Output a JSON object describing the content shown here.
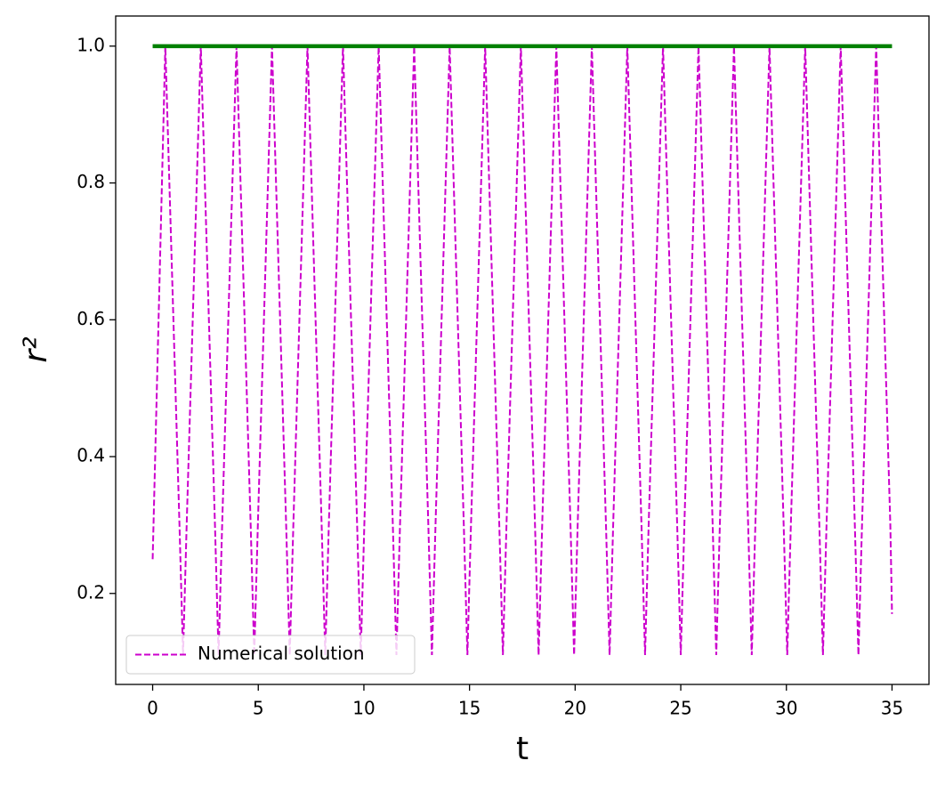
{
  "chart_data": {
    "type": "line",
    "xlabel": "t",
    "ylabel": "r²",
    "xlim": [
      -1.75,
      36.75
    ],
    "ylim": [
      0.067,
      1.044
    ],
    "xticks": [
      0,
      5,
      10,
      15,
      20,
      25,
      30,
      35
    ],
    "yticks": [
      {
        "value": 0.2,
        "label": "0.2"
      },
      {
        "value": 0.4,
        "label": "0.4"
      },
      {
        "value": 0.6,
        "label": "0.6"
      },
      {
        "value": 0.8,
        "label": "0.8"
      },
      {
        "value": 1.0,
        "label": "1.0"
      }
    ],
    "legend": "lower left",
    "series": [
      {
        "name": "Numerical solution",
        "color": "#cc00cc",
        "style": "dashed",
        "width": 2,
        "x": [
          0,
          0.6,
          1.27,
          1.44,
          1.61,
          2.28,
          2.95,
          3.12,
          3.29,
          3.97,
          4.64,
          4.81,
          4.98,
          5.65,
          6.32,
          6.49,
          6.66,
          7.33,
          8.0,
          8.17,
          8.34,
          9.01,
          9.68,
          9.85,
          10.02,
          10.7,
          11.37,
          11.54,
          11.71,
          12.38,
          13.05,
          13.22,
          13.39,
          14.06,
          14.73,
          14.9,
          15.07,
          15.74,
          16.41,
          16.58,
          16.75,
          17.43,
          18.1,
          18.27,
          18.44,
          19.11,
          19.78,
          19.95,
          20.12,
          20.79,
          21.46,
          21.63,
          21.8,
          22.47,
          23.14,
          23.31,
          23.48,
          24.16,
          24.83,
          25.0,
          25.17,
          25.84,
          26.51,
          26.68,
          26.85,
          27.52,
          28.19,
          28.36,
          28.53,
          29.2,
          29.87,
          30.04,
          30.21,
          30.89,
          31.56,
          31.73,
          31.9,
          32.57,
          33.24,
          33.41,
          33.58,
          34.25,
          34.92,
          35.0
        ],
        "values": [
          0.25,
          1,
          0.3,
          0.11,
          0.3,
          1,
          0.3,
          0.11,
          0.3,
          1,
          0.3,
          0.11,
          0.3,
          1,
          0.3,
          0.11,
          0.3,
          1,
          0.3,
          0.11,
          0.3,
          1,
          0.3,
          0.11,
          0.3,
          1,
          0.3,
          0.11,
          0.3,
          1,
          0.3,
          0.11,
          0.3,
          1,
          0.3,
          0.11,
          0.3,
          1,
          0.3,
          0.11,
          0.3,
          1,
          0.3,
          0.11,
          0.3,
          1,
          0.3,
          0.11,
          0.3,
          1,
          0.3,
          0.11,
          0.3,
          1,
          0.3,
          0.11,
          0.3,
          1,
          0.3,
          0.11,
          0.3,
          1,
          0.3,
          0.11,
          0.3,
          1,
          0.3,
          0.11,
          0.3,
          1,
          0.3,
          0.11,
          0.3,
          1,
          0.3,
          0.11,
          0.3,
          1,
          0.3,
          0.11,
          0.3,
          1,
          0.3,
          0.17
        ]
      },
      {
        "color": "#008000",
        "style": "solid",
        "width": 4.5,
        "x": [
          0,
          35
        ],
        "values": [
          1,
          1
        ]
      }
    ]
  }
}
